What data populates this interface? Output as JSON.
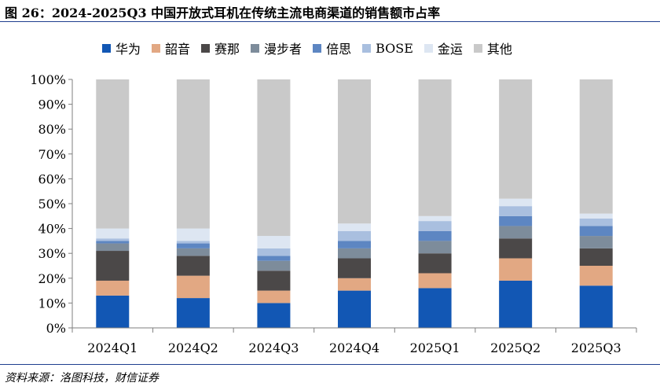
{
  "figure": {
    "title": "图 26：2024-2025Q3 中国开放式耳机在传统主流电商渠道的销售额市占率",
    "source": "资料来源：洛图科技，财信证券"
  },
  "colors": {
    "华为": "#1257b4",
    "韶音": "#e2a883",
    "赛那": "#4b4848",
    "漫步者": "#7d8c9b",
    "倍思": "#5d86c2",
    "BOSE": "#a9bfdf",
    "金运": "#dde6f2",
    "其他": "#c9c9c9"
  },
  "chart_data": {
    "type": "bar",
    "stacked": true,
    "title": "",
    "xlabel": "",
    "ylabel": "",
    "ylim": [
      0,
      100
    ],
    "yticks": [
      "0%",
      "10%",
      "20%",
      "30%",
      "40%",
      "50%",
      "60%",
      "70%",
      "80%",
      "90%",
      "100%"
    ],
    "y_unit": "%",
    "grid": false,
    "legend_position": "top",
    "categories": [
      "2024Q1",
      "2024Q2",
      "2024Q3",
      "2024Q4",
      "2025Q1",
      "2025Q2",
      "2025Q3"
    ],
    "series": [
      {
        "name": "华为",
        "values": [
          13,
          12,
          10,
          15,
          16,
          19,
          17
        ]
      },
      {
        "name": "韶音",
        "values": [
          6,
          9,
          5,
          5,
          6,
          9,
          8
        ]
      },
      {
        "name": "赛那",
        "values": [
          12,
          8,
          8,
          8,
          8,
          8,
          7
        ]
      },
      {
        "name": "漫步者",
        "values": [
          3,
          3,
          4,
          4,
          5,
          5,
          5
        ]
      },
      {
        "name": "倍思",
        "values": [
          1,
          2,
          2,
          3,
          4,
          4,
          4
        ]
      },
      {
        "name": "BOSE",
        "values": [
          1,
          1,
          3,
          4,
          4,
          4,
          3
        ]
      },
      {
        "name": "金运",
        "values": [
          4,
          5,
          5,
          3,
          2,
          3,
          2
        ]
      },
      {
        "name": "其他",
        "values": [
          60,
          60,
          63,
          58,
          55,
          48,
          54
        ]
      }
    ]
  }
}
